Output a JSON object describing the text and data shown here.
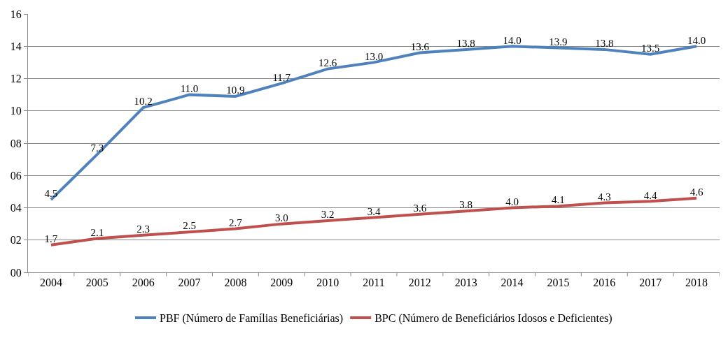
{
  "chart_data": {
    "type": "line",
    "categories": [
      "2004",
      "2005",
      "2006",
      "2007",
      "2008",
      "2009",
      "2010",
      "2011",
      "2012",
      "2013",
      "2014",
      "2015",
      "2016",
      "2017",
      "2018"
    ],
    "series": [
      {
        "name": "PBF (Número de Famílias Beneficiárias)",
        "color": "#4f81bd",
        "values": [
          4.5,
          7.3,
          10.2,
          11.0,
          10.9,
          11.7,
          12.6,
          13.0,
          13.6,
          13.8,
          14.0,
          13.9,
          13.8,
          13.5,
          14.0
        ],
        "value_labels": [
          "4.5",
          "7.3",
          "10.2",
          "11.0",
          "10.9",
          "11.7",
          "12.6",
          "13.0",
          "13.6",
          "13.8",
          "14.0",
          "13.9",
          "13.8",
          "13.5",
          "14.0"
        ]
      },
      {
        "name": "BPC (Número de Beneficiários Idosos e Deficientes)",
        "color": "#c0504d",
        "values": [
          1.7,
          2.1,
          2.3,
          2.5,
          2.7,
          3.0,
          3.2,
          3.4,
          3.6,
          3.8,
          4.0,
          4.1,
          4.3,
          4.4,
          4.6
        ],
        "value_labels": [
          "1.7",
          "2.1",
          "2.3",
          "2.5",
          "2.7",
          "3.0",
          "3.2",
          "3.4",
          "3.6",
          "3.8",
          "4.0",
          "4.1",
          "4.3",
          "4.4",
          "4.6"
        ]
      }
    ],
    "ylim": [
      0,
      16
    ],
    "yticks": [
      {
        "value": 0,
        "label": "00"
      },
      {
        "value": 2,
        "label": "02"
      },
      {
        "value": 4,
        "label": "04"
      },
      {
        "value": 6,
        "label": "06"
      },
      {
        "value": 8,
        "label": "08"
      },
      10,
      12,
      14,
      16
    ],
    "grid": "y",
    "legend": "bottom",
    "marker": "none",
    "line_style": "solid"
  }
}
